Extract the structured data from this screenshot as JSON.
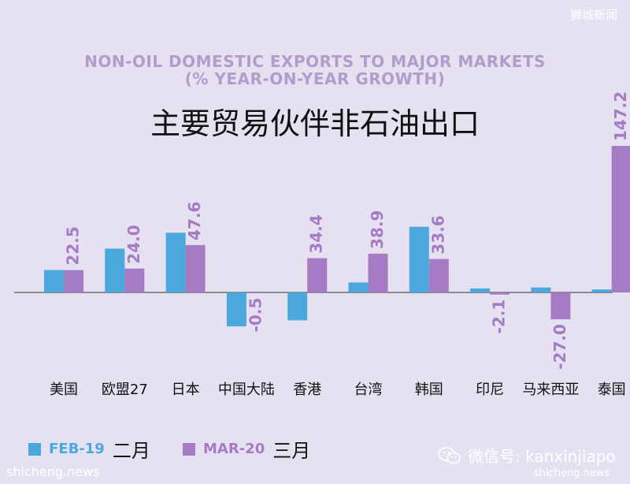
{
  "watermarks": {
    "top": "狮城新闻",
    "bottom_left": "shicheng.news",
    "bottom_right": "shicheng.news",
    "wechat": "微信号: kanxinjiapo"
  },
  "chart_data": {
    "type": "bar",
    "title": "NON-OIL DOMESTIC EXPORTS TO MAJOR MARKETS",
    "subtitle": "(% YEAR-ON-YEAR GROWTH)",
    "title_zh": "主要贸易伙伴非石油出口",
    "categories": [
      "美国",
      "欧盟27",
      "日本",
      "中国大陆",
      "香港",
      "台湾",
      "韩国",
      "印尼",
      "马来西亚",
      "泰国"
    ],
    "series": [
      {
        "name": "FEB-19",
        "name_zh": "二月",
        "color": "#4aa8dc",
        "values": [
          22.5,
          44.0,
          60.0,
          -34.0,
          -28.0,
          10.0,
          66.0,
          4.0,
          5.0,
          3.0
        ]
      },
      {
        "name": "MAR-20",
        "name_zh": "三月",
        "color": "#a67bc5",
        "values": [
          22.5,
          24.0,
          47.6,
          -0.5,
          34.4,
          38.9,
          33.6,
          -2.1,
          -27.0,
          147.2
        ]
      }
    ],
    "value_labels": [
      "22.5",
      "24.0",
      "47.6",
      "-0.5",
      "34.4",
      "38.9",
      "33.6",
      "-2.1",
      "-27.0",
      "147.2"
    ],
    "ylim": [
      -40,
      150
    ],
    "grid": false,
    "legend": "bottom-left"
  }
}
